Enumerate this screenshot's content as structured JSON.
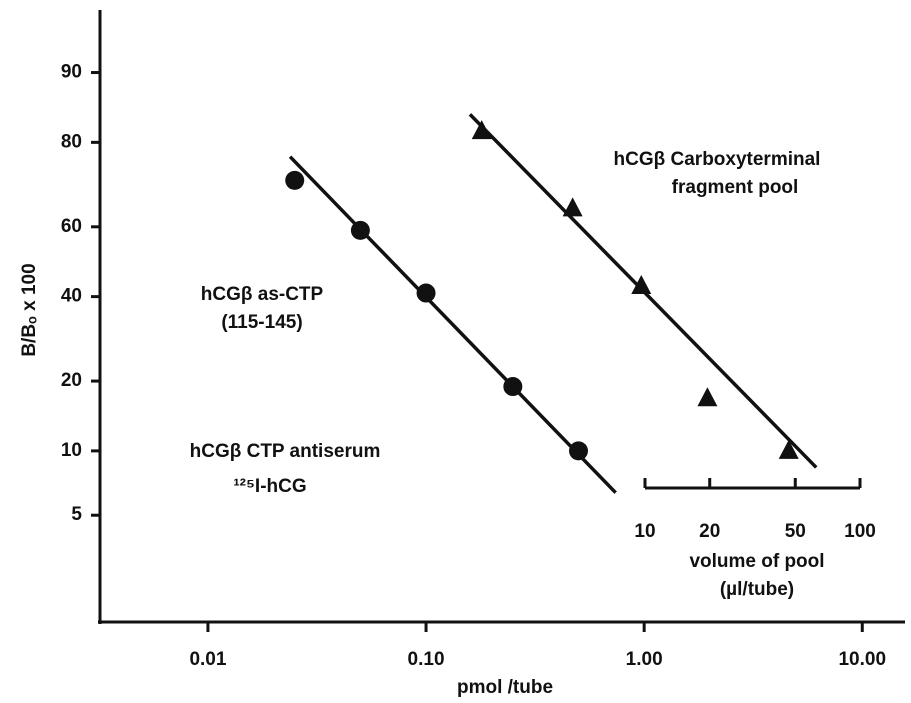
{
  "chart_data": {
    "type": "scatter",
    "ylabel": "B/Bₒ x 100",
    "xlabel": "pmol /tube",
    "xlog": true,
    "yscale": "logit",
    "xlim": [
      0.0032,
      15.7
    ],
    "ylim": [
      1.5,
      94.9
    ],
    "xticks": [
      0.01,
      {
        "value": 0.1,
        "label": "0.10"
      },
      {
        "value": 1,
        "label": "1.00"
      },
      {
        "value": 10,
        "label": "10.00"
      }
    ],
    "yticks": [
      5,
      10,
      20,
      40,
      60,
      80,
      90
    ],
    "color": "#111111",
    "series": [
      {
        "marker": "circle",
        "x": [
          0.025,
          0.05,
          0.1,
          0.25,
          0.5
        ],
        "values": [
          72,
          59,
          41,
          19,
          10
        ]
      },
      {
        "marker": "triangle",
        "x": [
          0.18,
          0.47,
          0.97,
          1.95,
          4.6
        ],
        "values": [
          82,
          65,
          43,
          17,
          10
        ]
      }
    ],
    "fit_lines": [
      {
        "x": [
          0.0238,
          0.74
        ],
        "values": [
          77.2,
          6.4
        ]
      },
      {
        "x": [
          0.159,
          6.15
        ],
        "values": [
          84.7,
          8.4
        ]
      }
    ],
    "x2label": [
      "volume of pool",
      "(µl/tube)"
    ],
    "x2lim": [
      10,
      100
    ],
    "x2ticks": [
      10,
      20,
      50,
      100
    ],
    "annotations": [
      "hCGβ Carboxyterminal",
      "fragment pool",
      "hCGβ as-CTP",
      "(115-145)",
      "hCGβ CTP antiserum",
      "¹²⁵I-hCG"
    ]
  }
}
